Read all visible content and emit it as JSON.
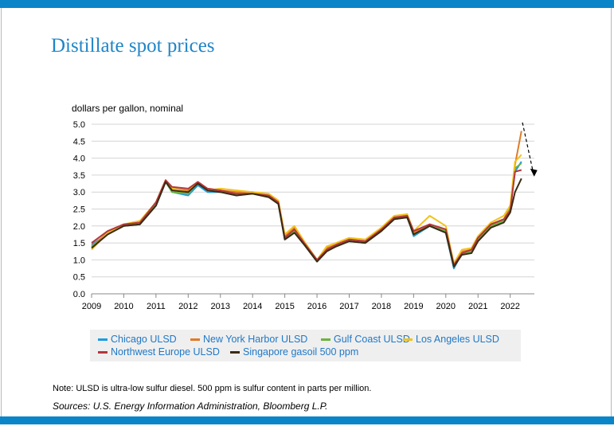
{
  "page": {
    "title": "Distillate spot prices",
    "note": "Note: ULSD is ultra-low sulfur diesel. 500 ppm is sulfur content in parts per million.",
    "sources": "Sources: U.S. Energy Information Administration, Bloomberg L.P.",
    "accent": "#0a86c8",
    "title_color": "#1f85c7"
  },
  "chart_data": {
    "type": "line",
    "ylabel": "dollars per gallon, nominal",
    "ylim": [
      0,
      5
    ],
    "xlim": [
      2009,
      2022.75
    ],
    "y_ticks": [
      "0.0",
      "0.5",
      "1.0",
      "1.5",
      "2.0",
      "2.5",
      "3.0",
      "3.5",
      "4.0",
      "4.5",
      "5.0"
    ],
    "x_ticks": [
      "2009",
      "2010",
      "2011",
      "2012",
      "2013",
      "2014",
      "2015",
      "2016",
      "2017",
      "2018",
      "2019",
      "2020",
      "2021",
      "2022"
    ],
    "grid": "horizontal",
    "legend_position": "bottom",
    "x": [
      2009.0,
      2009.5,
      2010.0,
      2010.5,
      2011.0,
      2011.3,
      2011.5,
      2012.0,
      2012.3,
      2012.6,
      2013.0,
      2013.5,
      2014.0,
      2014.5,
      2014.8,
      2015.0,
      2015.3,
      2015.6,
      2016.0,
      2016.3,
      2016.6,
      2017.0,
      2017.5,
      2018.0,
      2018.4,
      2018.8,
      2019.0,
      2019.5,
      2020.0,
      2020.25,
      2020.5,
      2020.8,
      2021.0,
      2021.4,
      2021.8,
      2022.0,
      2022.15,
      2022.35
    ],
    "series": [
      {
        "name": "Chicago ULSD",
        "color": "#1e9be0",
        "values": [
          1.45,
          1.75,
          2.0,
          2.05,
          2.6,
          3.3,
          3.0,
          2.9,
          3.2,
          3.0,
          3.0,
          2.9,
          3.0,
          2.85,
          2.7,
          1.6,
          1.8,
          1.5,
          0.95,
          1.3,
          1.4,
          1.55,
          1.5,
          1.85,
          2.2,
          2.3,
          1.7,
          2.0,
          1.8,
          0.75,
          1.2,
          1.25,
          1.6,
          2.0,
          2.15,
          2.5,
          3.6,
          3.9
        ]
      },
      {
        "name": "New York Harbor ULSD",
        "color": "#e07b28",
        "values": [
          1.4,
          1.8,
          2.05,
          2.1,
          2.7,
          3.35,
          3.1,
          3.05,
          3.3,
          3.1,
          3.05,
          3.0,
          3.0,
          2.9,
          2.7,
          1.7,
          1.95,
          1.5,
          1.0,
          1.35,
          1.45,
          1.6,
          1.55,
          1.9,
          2.25,
          2.3,
          1.8,
          2.05,
          1.9,
          0.85,
          1.25,
          1.3,
          1.65,
          2.05,
          2.2,
          2.55,
          3.8,
          4.8
        ]
      },
      {
        "name": "Gulf Coast ULSD",
        "color": "#6cb33e",
        "values": [
          1.38,
          1.75,
          2.0,
          2.05,
          2.65,
          3.3,
          3.0,
          2.95,
          3.25,
          3.05,
          3.0,
          2.95,
          2.95,
          2.85,
          2.65,
          1.65,
          1.85,
          1.45,
          0.95,
          1.3,
          1.4,
          1.55,
          1.5,
          1.85,
          2.2,
          2.25,
          1.75,
          2.0,
          1.85,
          0.8,
          1.2,
          1.25,
          1.6,
          2.0,
          2.15,
          2.5,
          3.7,
          3.85
        ]
      },
      {
        "name": "Los Angeles ULSD",
        "color": "#f2c21b",
        "values": [
          1.3,
          1.8,
          2.05,
          2.15,
          2.7,
          3.35,
          3.1,
          3.0,
          3.3,
          3.05,
          3.1,
          3.05,
          3.0,
          2.95,
          2.75,
          1.75,
          2.0,
          1.55,
          1.0,
          1.4,
          1.5,
          1.65,
          1.6,
          1.95,
          2.3,
          2.35,
          1.85,
          2.3,
          2.0,
          0.9,
          1.3,
          1.35,
          1.7,
          2.1,
          2.3,
          2.6,
          3.9,
          4.1
        ]
      },
      {
        "name": "Northwest Europe ULSD",
        "color": "#b5363c",
        "values": [
          1.5,
          1.85,
          2.05,
          2.1,
          2.7,
          3.35,
          3.15,
          3.1,
          3.3,
          3.1,
          3.05,
          2.95,
          2.95,
          2.9,
          2.7,
          1.65,
          1.9,
          1.5,
          1.0,
          1.3,
          1.45,
          1.6,
          1.55,
          1.9,
          2.25,
          2.3,
          1.85,
          2.05,
          1.9,
          0.85,
          1.2,
          1.3,
          1.65,
          2.05,
          2.2,
          2.45,
          3.6,
          3.65
        ]
      },
      {
        "name": "Singapore gasoil 500 ppm",
        "color": "#3b2b14",
        "values": [
          1.35,
          1.75,
          2.0,
          2.05,
          2.6,
          3.3,
          3.05,
          3.0,
          3.25,
          3.05,
          3.0,
          2.9,
          2.95,
          2.85,
          2.65,
          1.6,
          1.8,
          1.45,
          0.95,
          1.25,
          1.4,
          1.55,
          1.5,
          1.85,
          2.2,
          2.25,
          1.75,
          2.0,
          1.8,
          0.8,
          1.15,
          1.2,
          1.55,
          1.95,
          2.1,
          2.4,
          3.0,
          3.4
        ]
      }
    ],
    "legend": {
      "row1": [
        "Chicago ULSD",
        "New York Harbor ULSD",
        "Gulf Coast ULSD",
        "Los Angeles ULSD"
      ],
      "row2": [
        "Northwest Europe ULSD",
        "Singapore gasoil 500 ppm"
      ]
    }
  }
}
